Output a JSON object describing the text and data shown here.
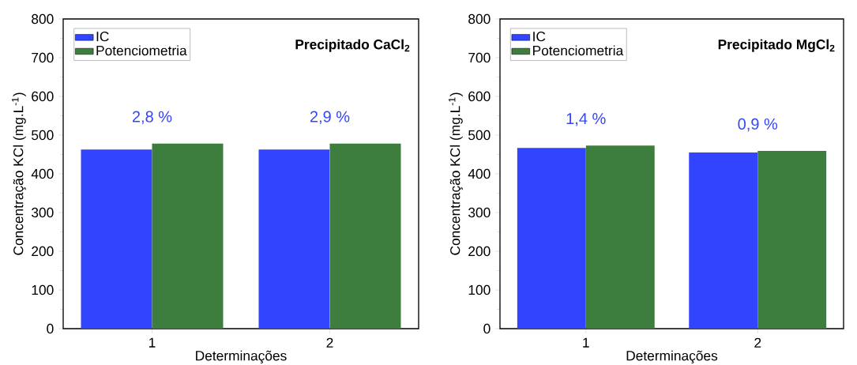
{
  "chart_data": [
    {
      "type": "bar",
      "title": "Precipitado CaCl$_{2}$",
      "xlabel": "Determinações",
      "ylabel": "Concentração KCl (mg.L$^{-1}$)",
      "categories": [
        "1",
        "2"
      ],
      "series": [
        {
          "name": "IC",
          "color": "#3344ff",
          "values": [
            463,
            463
          ]
        },
        {
          "name": "Potenciometria",
          "color": "#3d7d3d",
          "values": [
            478,
            478
          ]
        }
      ],
      "ylim": [
        0,
        800
      ],
      "yticks": [
        0,
        100,
        200,
        300,
        400,
        500,
        600,
        700,
        800
      ],
      "legend": "top left",
      "annotations": [
        "2,8 %",
        "2,9 %"
      ]
    },
    {
      "type": "bar",
      "title": "Precipitado MgCl$_{2}$",
      "xlabel": "Determinações",
      "ylabel": "Concentração KCl (mg.L$^{-1}$)",
      "categories": [
        "1",
        "2"
      ],
      "series": [
        {
          "name": "IC",
          "color": "#3344ff",
          "values": [
            467,
            455
          ]
        },
        {
          "name": "Potenciometria",
          "color": "#3d7d3d",
          "values": [
            473,
            459
          ]
        }
      ],
      "ylim": [
        0,
        800
      ],
      "yticks": [
        0,
        100,
        200,
        300,
        400,
        500,
        600,
        700,
        800
      ],
      "legend": "top left",
      "annotations": [
        "1,4 %",
        "0,9 %"
      ]
    }
  ]
}
